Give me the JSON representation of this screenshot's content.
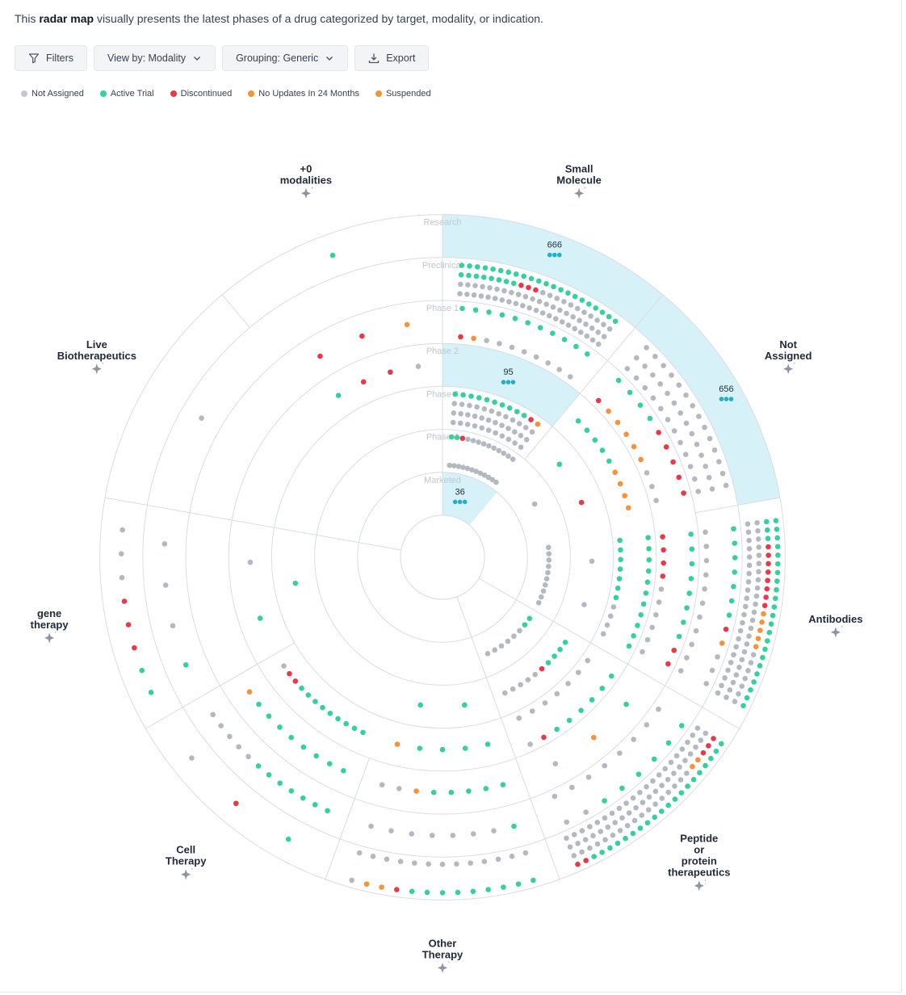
{
  "intro": {
    "prefix": "This",
    "bold": "radar map",
    "suffix": "visually presents the latest phases of a drug categorized by target, modality, or indication."
  },
  "toolbar": {
    "filters": "Filters",
    "view_by": "View by: Modality",
    "grouping": "Grouping: Generic",
    "export": "Export"
  },
  "legend": [
    {
      "label": "Not Assigned",
      "color": "#c4c7ce"
    },
    {
      "label": "Active Trial",
      "color": "#34d19a"
    },
    {
      "label": "Discontinued",
      "color": "#e8394a"
    },
    {
      "label": "No Updates In 24 Months",
      "color": "#f5923a"
    },
    {
      "label": "Suspended",
      "color": "#f5923a"
    }
  ],
  "colors": {
    "not_assigned": "#b4b8c1",
    "active": "#34d19a",
    "discontinued": "#e8394a",
    "no_updates": "#f5923a",
    "highlight": "#d6f1f7",
    "grid": "#d9dce1",
    "count": "#1fb1c9"
  },
  "chart_data": {
    "type": "radar",
    "rings": [
      "Research",
      "Preclinical",
      "Phase 1",
      "Phase 2",
      "Phase 3",
      "Phase 4",
      "Marketed"
    ],
    "sectors": [
      {
        "name": "Small Molecule",
        "lines": [
          "Small",
          "Molecule"
        ]
      },
      {
        "name": "Not Assigned",
        "lines": [
          "Not",
          "Assigned"
        ]
      },
      {
        "name": "Antibodies",
        "lines": [
          "Antibodies"
        ]
      },
      {
        "name": "Peptide or protein therapeutics",
        "lines": [
          "Peptide",
          "or",
          "protein",
          "therapeutics"
        ]
      },
      {
        "name": "Other Therapy",
        "lines": [
          "Other",
          "Therapy"
        ]
      },
      {
        "name": "Cell Therapy",
        "lines": [
          "Cell",
          "Therapy"
        ]
      },
      {
        "name": "gene therapy",
        "lines": [
          "gene",
          "therapy"
        ]
      },
      {
        "name": "Live Biotherapeutics",
        "lines": [
          "Live",
          "Biotherapeutics"
        ]
      },
      {
        "name": "+0 modalities",
        "lines": [
          "+0",
          "modalities"
        ]
      }
    ],
    "highlighted_cells": [
      {
        "sector": "Small Molecule",
        "ring": "Research",
        "count": 666
      },
      {
        "sector": "Not Assigned",
        "ring": "Research",
        "count": 656
      },
      {
        "sector": "Small Molecule",
        "ring": "Phase 2",
        "count": 95
      },
      {
        "sector": "Small Molecule",
        "ring": "Marketed",
        "count": 36
      }
    ],
    "cells": [
      {
        "sector": "Small Molecule",
        "ring": "Preclinical",
        "active": 30,
        "discontinued": 3,
        "no_updates": 0,
        "not_assigned": 55
      },
      {
        "sector": "Small Molecule",
        "ring": "Phase 1",
        "active": 11,
        "discontinued": 1,
        "no_updates": 1,
        "not_assigned": 8
      },
      {
        "sector": "Small Molecule",
        "ring": "Phase 3",
        "active": 10,
        "discontinued": 1,
        "no_updates": 1,
        "not_assigned": 35
      },
      {
        "sector": "Small Molecule",
        "ring": "Phase 4",
        "active": 2,
        "discontinued": 1,
        "no_updates": 0,
        "not_assigned": 22
      },
      {
        "sector": "Not Assigned",
        "ring": "Preclinical",
        "active": 0,
        "discontinued": 0,
        "no_updates": 0,
        "not_assigned": 40
      },
      {
        "sector": "Not Assigned",
        "ring": "Phase 1",
        "active": 4,
        "discontinued": 6,
        "no_updates": 5,
        "not_assigned": 3
      },
      {
        "sector": "Not Assigned",
        "ring": "Phase 2",
        "active": 5,
        "discontinued": 0,
        "no_updates": 4,
        "not_assigned": 0
      },
      {
        "sector": "Not Assigned",
        "ring": "Phase 3",
        "active": 1,
        "discontinued": 1,
        "no_updates": 0,
        "not_assigned": 0
      },
      {
        "sector": "Not Assigned",
        "ring": "Phase 4",
        "active": 0,
        "discontinued": 0,
        "no_updates": 0,
        "not_assigned": 1
      },
      {
        "sector": "Antibodies",
        "ring": "Research",
        "active": 26,
        "discontinued": 8,
        "no_updates": 5,
        "not_assigned": 52
      },
      {
        "sector": "Antibodies",
        "ring": "Preclinical",
        "active": 7,
        "discontinued": 1,
        "no_updates": 1,
        "not_assigned": 14
      },
      {
        "sector": "Antibodies",
        "ring": "Phase 1",
        "active": 8,
        "discontinued": 6,
        "no_updates": 0,
        "not_assigned": 6
      },
      {
        "sector": "Antibodies",
        "ring": "Phase 2",
        "active": 18,
        "discontinued": 0,
        "no_updates": 0,
        "not_assigned": 4
      },
      {
        "sector": "Antibodies",
        "ring": "Phase 3",
        "active": 0,
        "discontinued": 0,
        "no_updates": 0,
        "not_assigned": 2
      },
      {
        "sector": "Antibodies",
        "ring": "Phase 4",
        "active": 0,
        "discontinued": 0,
        "no_updates": 0,
        "not_assigned": 10
      },
      {
        "sector": "Peptide or protein therapeutics",
        "ring": "Research",
        "active": 20,
        "discontinued": 5,
        "no_updates": 2,
        "not_assigned": 60
      },
      {
        "sector": "Peptide or protein therapeutics",
        "ring": "Preclinical",
        "active": 6,
        "discontinued": 0,
        "no_updates": 0,
        "not_assigned": 10
      },
      {
        "sector": "Peptide or protein therapeutics",
        "ring": "Phase 1",
        "active": 1,
        "discontinued": 0,
        "no_updates": 1,
        "not_assigned": 1
      },
      {
        "sector": "Peptide or protein therapeutics",
        "ring": "Phase 2",
        "active": 6,
        "discontinued": 1,
        "no_updates": 0,
        "not_assigned": 8
      },
      {
        "sector": "Peptide or protein therapeutics",
        "ring": "Phase 3",
        "active": 4,
        "discontinued": 1,
        "no_updates": 0,
        "not_assigned": 5
      },
      {
        "sector": "Peptide or protein therapeutics",
        "ring": "Phase 4",
        "active": 2,
        "discontinued": 0,
        "no_updates": 0,
        "not_assigned": 6
      },
      {
        "sector": "Other Therapy",
        "ring": "Research",
        "active": 9,
        "discontinued": 1,
        "no_updates": 2,
        "not_assigned": 14
      },
      {
        "sector": "Other Therapy",
        "ring": "Preclinical",
        "active": 1,
        "discontinued": 0,
        "no_updates": 0,
        "not_assigned": 7
      },
      {
        "sector": "Other Therapy",
        "ring": "Phase 1",
        "active": 5,
        "discontinued": 0,
        "no_updates": 1,
        "not_assigned": 2
      },
      {
        "sector": "Other Therapy",
        "ring": "Phase 2",
        "active": 4,
        "discontinued": 0,
        "no_updates": 1,
        "not_assigned": 0
      },
      {
        "sector": "Other Therapy",
        "ring": "Phase 3",
        "active": 2,
        "discontinued": 0,
        "no_updates": 0,
        "not_assigned": 0
      },
      {
        "sector": "Cell Therapy",
        "ring": "Research",
        "active": 1,
        "discontinued": 1,
        "no_updates": 0,
        "not_assigned": 1
      },
      {
        "sector": "Cell Therapy",
        "ring": "Preclinical",
        "active": 7,
        "discontinued": 0,
        "no_updates": 0,
        "not_assigned": 5
      },
      {
        "sector": "Cell Therapy",
        "ring": "Phase 1",
        "active": 8,
        "discontinued": 0,
        "no_updates": 1,
        "not_assigned": 0
      },
      {
        "sector": "Cell Therapy",
        "ring": "Phase 2",
        "active": 9,
        "discontinued": 2,
        "no_updates": 0,
        "not_assigned": 1
      },
      {
        "sector": "gene therapy",
        "ring": "Research",
        "active": 2,
        "discontinued": 3,
        "no_updates": 0,
        "not_assigned": 3
      },
      {
        "sector": "gene therapy",
        "ring": "Preclinical",
        "active": 1,
        "discontinued": 0,
        "no_updates": 0,
        "not_assigned": 3
      },
      {
        "sector": "gene therapy",
        "ring": "Phase 1",
        "active": 0,
        "discontinued": 0,
        "no_updates": 0,
        "not_assigned": 0
      },
      {
        "sector": "gene therapy",
        "ring": "Phase 2",
        "active": 1,
        "discontinued": 0,
        "no_updates": 0,
        "not_assigned": 1
      },
      {
        "sector": "gene therapy",
        "ring": "Phase 3",
        "active": 1,
        "discontinued": 0,
        "no_updates": 0,
        "not_assigned": 0
      },
      {
        "sector": "Live Biotherapeutics",
        "ring": "Preclinical",
        "active": 0,
        "discontinued": 0,
        "no_updates": 0,
        "not_assigned": 1
      },
      {
        "sector": "+0 modalities",
        "ring": "Research",
        "active": 1,
        "discontinued": 0,
        "no_updates": 0,
        "not_assigned": 0
      },
      {
        "sector": "+0 modalities",
        "ring": "Phase 1",
        "active": 0,
        "discontinued": 2,
        "no_updates": 1,
        "not_assigned": 0
      },
      {
        "sector": "+0 modalities",
        "ring": "Phase 2",
        "active": 1,
        "discontinued": 2,
        "no_updates": 0,
        "not_assigned": 1
      }
    ]
  }
}
